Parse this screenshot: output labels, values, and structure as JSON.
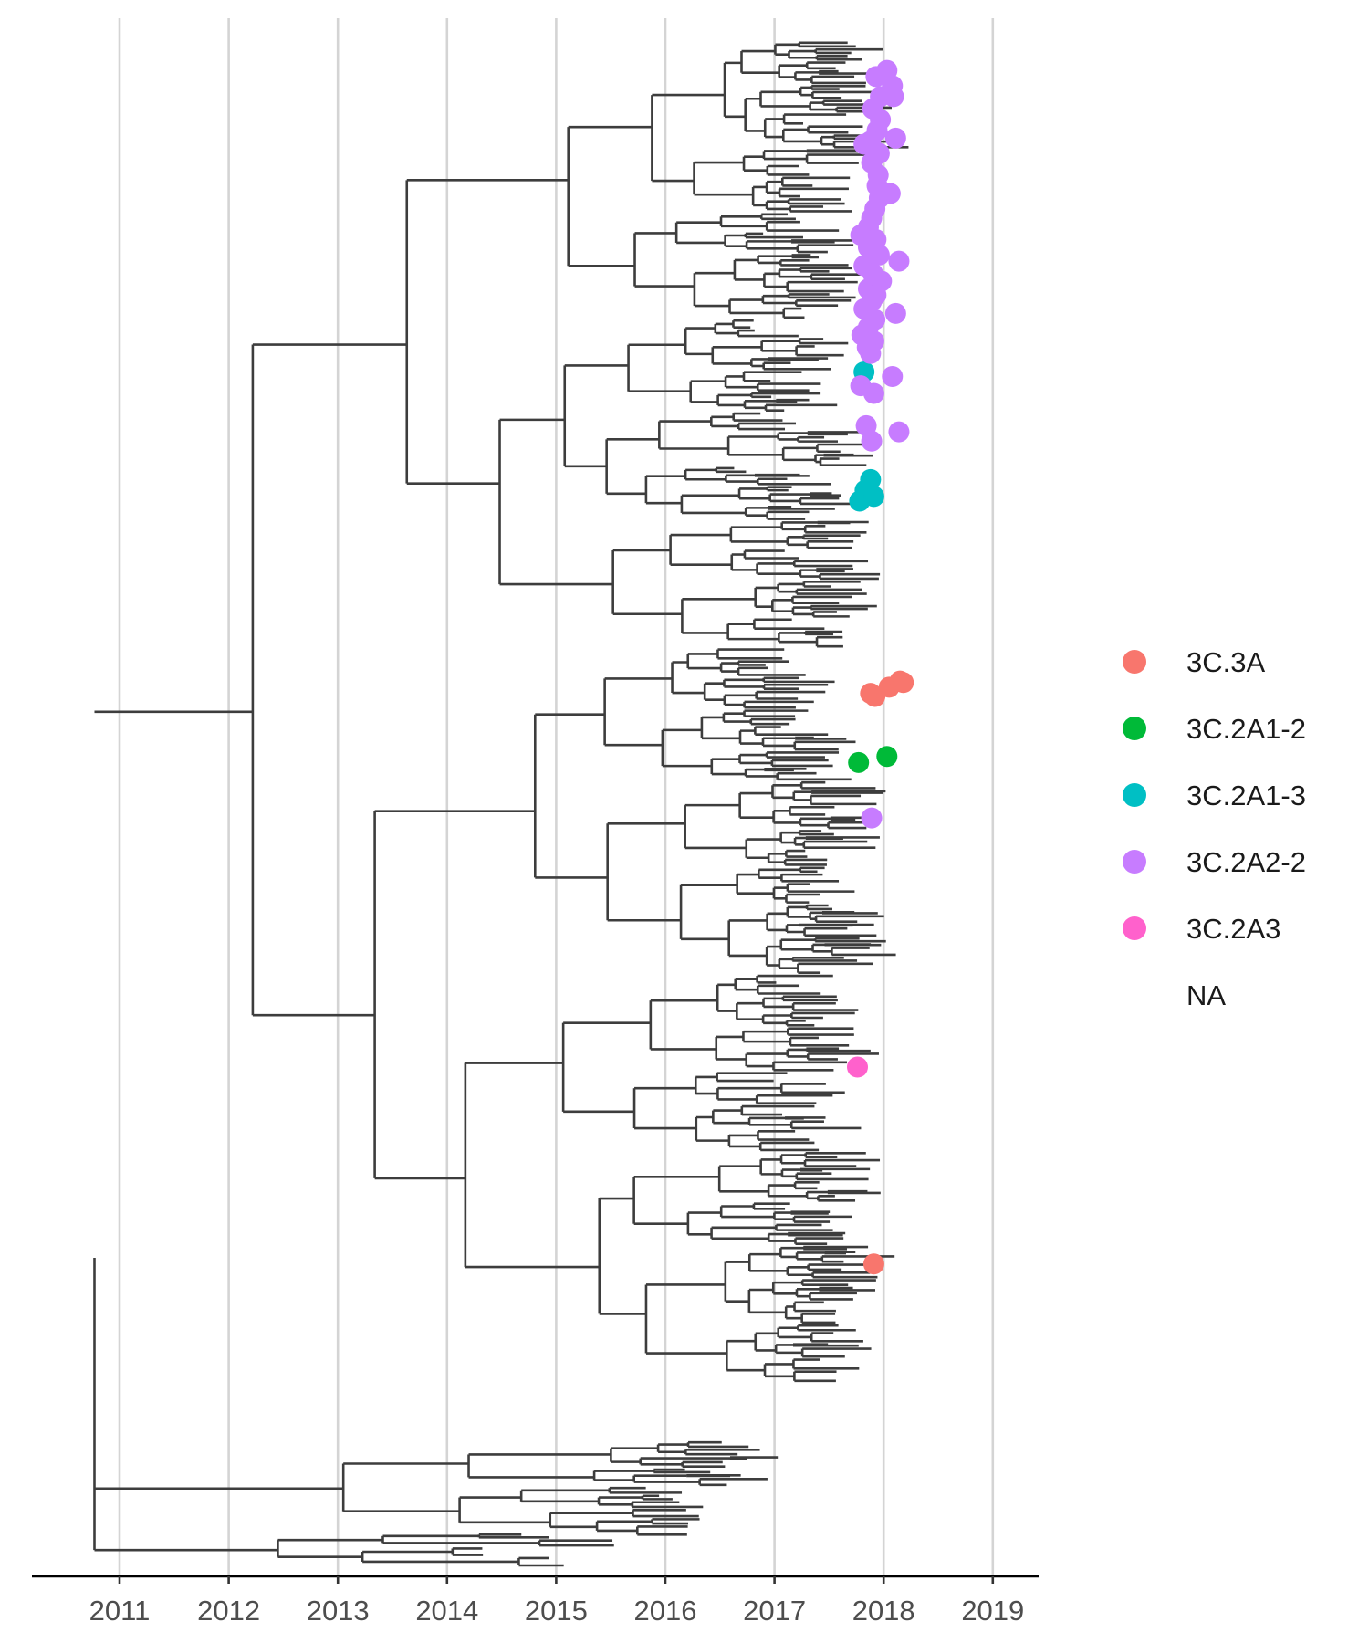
{
  "chart_data": {
    "type": "scatter",
    "subtype": "time-scaled phylogenetic tree",
    "title": "",
    "xlabel": "",
    "ylabel": "",
    "x_axis": {
      "ticks": [
        2011,
        2012,
        2013,
        2014,
        2015,
        2016,
        2017,
        2018,
        2019
      ],
      "tick_labels": [
        "2011",
        "2012",
        "2013",
        "2014",
        "2015",
        "2016",
        "2017",
        "2018",
        "2019"
      ],
      "xlim": [
        2010.2,
        2019.45
      ]
    },
    "grid": "vertical major gridlines",
    "legend": {
      "placement": "right",
      "entries": [
        {
          "label": "3C.3A",
          "color": "#F8766D"
        },
        {
          "label": "3C.2A1-2",
          "color": "#00BA38"
        },
        {
          "label": "3C.2A1-3",
          "color": "#00BFC4"
        },
        {
          "label": "3C.2A2-2",
          "color": "#C77CFF"
        },
        {
          "label": "3C.2A3",
          "color": "#FF61CC"
        },
        {
          "label": "NA",
          "color": "none"
        }
      ]
    },
    "series": [
      {
        "name": "3C.3A",
        "color": "#F8766D",
        "points": [
          {
            "x": 2017.92,
            "y": 0.565
          },
          {
            "x": 2018.05,
            "y": 0.571
          },
          {
            "x": 2018.15,
            "y": 0.575
          },
          {
            "x": 2018.18,
            "y": 0.574
          },
          {
            "x": 2017.88,
            "y": 0.567
          },
          {
            "x": 2017.91,
            "y": 0.196
          }
        ]
      },
      {
        "name": "3C.2A1-2",
        "color": "#00BA38",
        "points": [
          {
            "x": 2017.77,
            "y": 0.522
          },
          {
            "x": 2018.03,
            "y": 0.526
          }
        ]
      },
      {
        "name": "3C.2A1-3",
        "color": "#00BFC4",
        "points": [
          {
            "x": 2017.82,
            "y": 0.776
          },
          {
            "x": 2017.88,
            "y": 0.706
          },
          {
            "x": 2017.83,
            "y": 0.699
          },
          {
            "x": 2017.78,
            "y": 0.692
          },
          {
            "x": 2017.91,
            "y": 0.695
          }
        ]
      },
      {
        "name": "3C.2A2-2",
        "color": "#C77CFF",
        "points": [
          {
            "x": 2017.89,
            "y": 0.486
          },
          {
            "x": 2018.03,
            "y": 0.972
          },
          {
            "x": 2017.93,
            "y": 0.968
          },
          {
            "x": 2018.08,
            "y": 0.962
          },
          {
            "x": 2017.97,
            "y": 0.955
          },
          {
            "x": 2018.09,
            "y": 0.955
          },
          {
            "x": 2017.9,
            "y": 0.947
          },
          {
            "x": 2017.97,
            "y": 0.94
          },
          {
            "x": 2017.94,
            "y": 0.933
          },
          {
            "x": 2018.11,
            "y": 0.928
          },
          {
            "x": 2017.88,
            "y": 0.926
          },
          {
            "x": 2017.82,
            "y": 0.924
          },
          {
            "x": 2017.96,
            "y": 0.918
          },
          {
            "x": 2017.89,
            "y": 0.912
          },
          {
            "x": 2017.95,
            "y": 0.904
          },
          {
            "x": 2017.94,
            "y": 0.897
          },
          {
            "x": 2018.06,
            "y": 0.892
          },
          {
            "x": 2017.96,
            "y": 0.889
          },
          {
            "x": 2017.92,
            "y": 0.882
          },
          {
            "x": 2017.89,
            "y": 0.876
          },
          {
            "x": 2017.86,
            "y": 0.87
          },
          {
            "x": 2017.79,
            "y": 0.865
          },
          {
            "x": 2017.93,
            "y": 0.862
          },
          {
            "x": 2017.86,
            "y": 0.857
          },
          {
            "x": 2017.96,
            "y": 0.852
          },
          {
            "x": 2018.14,
            "y": 0.848
          },
          {
            "x": 2017.82,
            "y": 0.845
          },
          {
            "x": 2017.9,
            "y": 0.84
          },
          {
            "x": 2017.98,
            "y": 0.835
          },
          {
            "x": 2017.86,
            "y": 0.83
          },
          {
            "x": 2017.93,
            "y": 0.826
          },
          {
            "x": 2017.89,
            "y": 0.822
          },
          {
            "x": 2017.82,
            "y": 0.817
          },
          {
            "x": 2018.11,
            "y": 0.814
          },
          {
            "x": 2017.92,
            "y": 0.81
          },
          {
            "x": 2017.86,
            "y": 0.805
          },
          {
            "x": 2017.8,
            "y": 0.8
          },
          {
            "x": 2017.91,
            "y": 0.796
          },
          {
            "x": 2017.85,
            "y": 0.792
          },
          {
            "x": 2017.88,
            "y": 0.788
          },
          {
            "x": 2018.08,
            "y": 0.773
          },
          {
            "x": 2017.79,
            "y": 0.767
          },
          {
            "x": 2017.91,
            "y": 0.762
          },
          {
            "x": 2017.84,
            "y": 0.741
          },
          {
            "x": 2018.14,
            "y": 0.737
          },
          {
            "x": 2017.89,
            "y": 0.731
          }
        ]
      },
      {
        "name": "3C.2A3",
        "color": "#FF61CC",
        "points": [
          {
            "x": 2017.76,
            "y": 0.324
          }
        ]
      }
    ],
    "tree_note": "Black branch lines of a rooted time-scaled tree; root near 2010.77, most tips between 2016 and 2018.7."
  }
}
